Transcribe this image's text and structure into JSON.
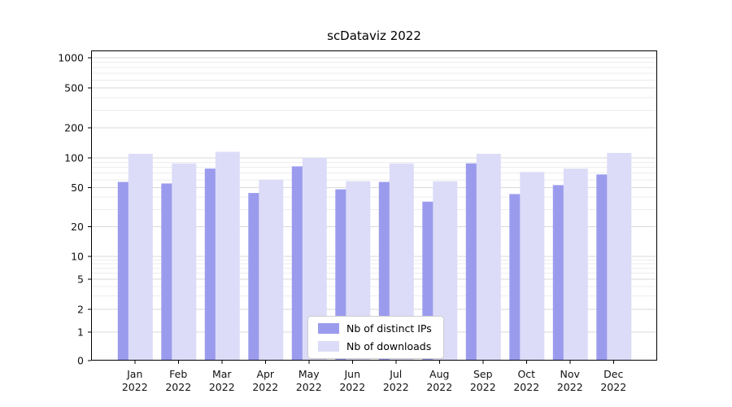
{
  "chart_data": {
    "type": "bar",
    "title": "scDataviz 2022",
    "categories": [
      "Jan\n2022",
      "Feb\n2022",
      "Mar\n2022",
      "Apr\n2022",
      "May\n2022",
      "Jun\n2022",
      "Jul\n2022",
      "Aug\n2022",
      "Sep\n2022",
      "Oct\n2022",
      "Nov\n2022",
      "Dec\n2022"
    ],
    "series": [
      {
        "name": "Nb of distinct IPs",
        "color": "#9b9bee",
        "values": [
          57,
          55,
          78,
          44,
          82,
          48,
          57,
          36,
          88,
          43,
          53,
          68
        ]
      },
      {
        "name": "Nb of downloads",
        "color": "#dcdcf8",
        "values": [
          110,
          88,
          115,
          60,
          100,
          58,
          88,
          58,
          110,
          72,
          78,
          112
        ]
      }
    ],
    "yticks": [
      0,
      1,
      2,
      5,
      10,
      20,
      50,
      100,
      200,
      500,
      1000
    ],
    "yscale": "symlog",
    "ylim": [
      0,
      1400
    ],
    "xlabel": "",
    "ylabel": "",
    "grid": true,
    "legend_position": "lower center",
    "colors": {
      "major_grid": "#d9d9d9",
      "minor_grid": "#ededed",
      "axis": "#000000",
      "background": "#ffffff"
    }
  }
}
